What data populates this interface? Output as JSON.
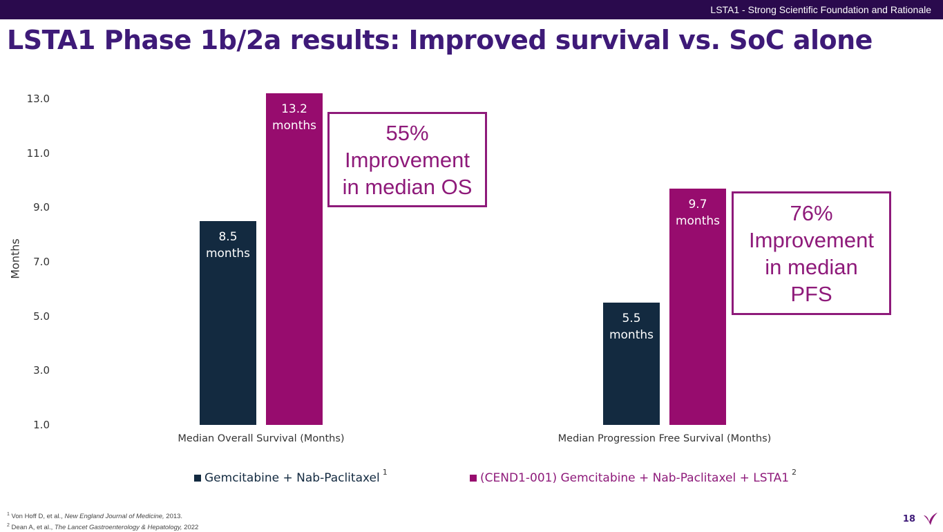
{
  "header": {
    "section": "LSTA1 - Strong Scientific Foundation and Rationale"
  },
  "title": "LSTA1 Phase 1b/2a results: Improved survival vs. SoC alone",
  "chart_data": {
    "type": "bar",
    "categories": [
      "Median Overall Survival (Months)",
      "Median Progression Free Survival (Months)"
    ],
    "series": [
      {
        "name": "Gemcitabine + Nab-Paclitaxel",
        "superscript": "1",
        "color": "#132a40",
        "values": [
          8.5,
          5.5
        ],
        "labels": [
          "8.5 months",
          "5.5 months"
        ]
      },
      {
        "name": "(CEND1-001) Gemcitabine + Nab-Paclitaxel + LSTA1",
        "superscript": "2",
        "color": "#970c6e",
        "values": [
          13.2,
          9.7
        ],
        "labels": [
          "13.2 months",
          "9.7 months"
        ]
      }
    ],
    "ylabel": "Months",
    "yticks": [
      "1.0",
      "3.0",
      "5.0",
      "7.0",
      "9.0",
      "11.0",
      "13.0"
    ],
    "ylim": [
      1.0,
      13.0
    ],
    "grid": false,
    "legend_position": "bottom"
  },
  "bar_label_lines": {
    "os_soc": [
      "8.5",
      "months"
    ],
    "os_lsta1": [
      "13.2",
      "months"
    ],
    "pfs_soc": [
      "5.5",
      "months"
    ],
    "pfs_lsta1": [
      "9.7",
      "months"
    ]
  },
  "callouts": {
    "os": [
      "55%",
      "Improvement",
      "in median OS"
    ],
    "pfs": [
      "76%",
      "Improvement",
      "in median",
      "PFS"
    ]
  },
  "footnotes": [
    {
      "num": "1",
      "authors": "Von Hoff D, et al., ",
      "journal": "New England Journal of Medicine,",
      "year": " 2013."
    },
    {
      "num": "2",
      "authors": "Dean A, et al., ",
      "journal": "The Lancet Gastroenterology & Hepatology,",
      "year": " 2022"
    }
  ],
  "page_number": "18",
  "colors": {
    "header_bg": "#2a0a4d",
    "title": "#3e1a78",
    "accent": "#8e1a7a",
    "soc_bar": "#132a40",
    "lsta1_bar": "#970c6e"
  }
}
